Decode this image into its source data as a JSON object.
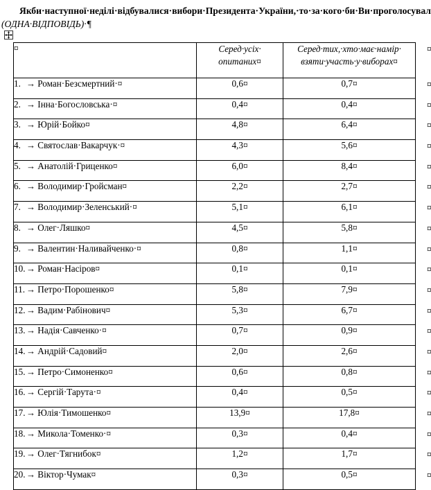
{
  "document": {
    "title_line1": "Якби·наступної·неділі·відбувалися·вибори·Президента·України,·то·за·кого·би·Ви·проголосували?·",
    "title_line2": "(ОДНА·ВІДПОВІДЬ)·",
    "pilcrow": "¶"
  },
  "marks": {
    "tab": "→",
    "cell_end": "¤",
    "row_end": "¤"
  },
  "table": {
    "header": {
      "col1": "¤",
      "col2_line1": "Серед·усіх·",
      "col2_line2": "опитаних¤",
      "col3_line1": "Серед·тих,·хто·має·намір·",
      "col3_line2": "взяти·участь·у·виборах¤"
    },
    "rows": [
      {
        "num": "1.",
        "name": "Роман·Безсмертний·¤",
        "all": "0,6¤",
        "turnout": "0,7¤"
      },
      {
        "num": "2.",
        "name": "Інна·Богословська·¤",
        "all": "0,4¤",
        "turnout": "0,4¤"
      },
      {
        "num": "3.",
        "name": "Юрій·Бойко¤",
        "all": "4,8¤",
        "turnout": "6,4¤"
      },
      {
        "num": "4.",
        "name": "Святослав·Вакарчук·¤",
        "all": "4,3¤",
        "turnout": "5,6¤"
      },
      {
        "num": "5.",
        "name": "Анатолій·Гриценко¤",
        "all": "6,0¤",
        "turnout": "8,4¤"
      },
      {
        "num": "6.",
        "name": "Володимир·Гройсман¤",
        "all": "2,2¤",
        "turnout": "2,7¤"
      },
      {
        "num": "7.",
        "name": "Володимир·Зеленський·¤",
        "all": "5,1¤",
        "turnout": "6,1¤"
      },
      {
        "num": "8.",
        "name": "Олег·Ляшко¤",
        "all": "4,5¤",
        "turnout": "5,8¤"
      },
      {
        "num": "9.",
        "name": "Валентин·Наливайченко·¤",
        "all": "0,8¤",
        "turnout": "1,1¤"
      },
      {
        "num": "10.",
        "name": "Роман·Насіров¤",
        "all": "0,1¤",
        "turnout": "0,1¤"
      },
      {
        "num": "11.",
        "name": "Петро·Порошенко¤",
        "all": "5,8¤",
        "turnout": "7,9¤"
      },
      {
        "num": "12.",
        "name": "Вадим·Рабінович¤",
        "all": "5,3¤",
        "turnout": "6,7¤"
      },
      {
        "num": "13.",
        "name": "Надія·Савченко·¤",
        "all": "0,7¤",
        "turnout": "0,9¤"
      },
      {
        "num": "14.",
        "name": "Андрій·Садовий¤",
        "all": "2,0¤",
        "turnout": "2,6¤"
      },
      {
        "num": "15.",
        "name": "Петро·Симоненко¤",
        "all": "0,6¤",
        "turnout": "0,8¤"
      },
      {
        "num": "16.",
        "name": "Сергій·Тарута·¤",
        "all": "0,4¤",
        "turnout": "0,5¤"
      },
      {
        "num": "17.",
        "name": "Юлія·Тимошенко¤",
        "all": "13,9¤",
        "turnout": "17,8¤"
      },
      {
        "num": "18.",
        "name": "Микола·Томенко·¤",
        "all": "0,3¤",
        "turnout": "0,4¤"
      },
      {
        "num": "19.",
        "name": "Олег·Тягнибок¤",
        "all": "1,2¤",
        "turnout": "1,7¤"
      },
      {
        "num": "20.",
        "name": "Віктор·Чумак¤",
        "all": "0,3¤",
        "turnout": "0,5¤"
      }
    ]
  }
}
